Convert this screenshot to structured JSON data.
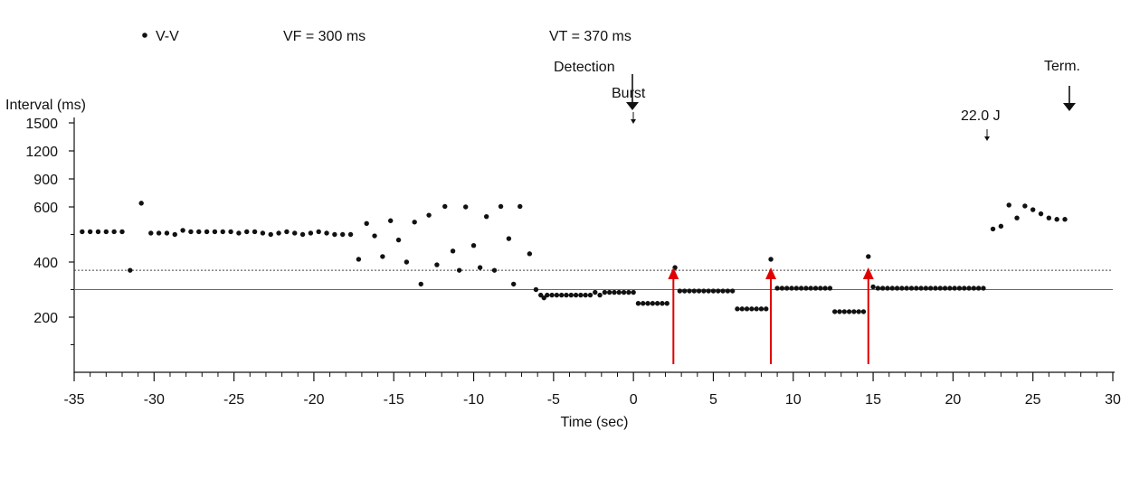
{
  "chart_data": {
    "type": "scatter",
    "title": "",
    "xlabel": "Time (sec)",
    "ylabel": "Interval (ms)",
    "xlim": [
      -35,
      30
    ],
    "ylim": [
      0,
      1500
    ],
    "x_ticks": [
      "-35",
      "-30",
      "-25",
      "-20",
      "-15",
      "-10",
      "-5",
      "0",
      "5",
      "10",
      "15",
      "20",
      "25",
      "30"
    ],
    "y_ticks": [
      "1500",
      "1200",
      "900",
      "600",
      "400",
      "200"
    ],
    "y_scale": "piecewise",
    "y_mapping": [
      [
        1500,
        136
      ],
      [
        1200,
        167
      ],
      [
        900,
        198
      ],
      [
        600,
        229
      ],
      [
        400,
        290
      ],
      [
        200,
        351
      ],
      [
        0,
        412
      ]
    ],
    "legend": {
      "label": "V-V",
      "position": "top-left"
    },
    "zones": [
      {
        "label": "VF = 300 ms",
        "value": 300
      },
      {
        "label": "VT = 370 ms",
        "value": 370
      }
    ],
    "annotations": [
      {
        "label": "Detection",
        "x": 0
      },
      {
        "label": "Burst",
        "x": 0
      },
      {
        "label": "22.0 J",
        "x": 22
      },
      {
        "label": "Term.",
        "x": 27.3
      }
    ],
    "therapy_markers_x": [
      2.5,
      8.6,
      14.7
    ],
    "series": [
      {
        "name": "V-V",
        "points": [
          [
            -34.5,
            510
          ],
          [
            -34.0,
            510
          ],
          [
            -33.5,
            510
          ],
          [
            -33.0,
            510
          ],
          [
            -32.5,
            510
          ],
          [
            -32.0,
            510
          ],
          [
            -31.5,
            370
          ],
          [
            -30.8,
            640
          ],
          [
            -30.2,
            505
          ],
          [
            -29.7,
            505
          ],
          [
            -29.2,
            505
          ],
          [
            -28.7,
            500
          ],
          [
            -28.2,
            515
          ],
          [
            -27.7,
            510
          ],
          [
            -27.2,
            510
          ],
          [
            -26.7,
            510
          ],
          [
            -26.2,
            510
          ],
          [
            -25.7,
            510
          ],
          [
            -25.2,
            510
          ],
          [
            -24.7,
            505
          ],
          [
            -24.2,
            510
          ],
          [
            -23.7,
            510
          ],
          [
            -23.2,
            505
          ],
          [
            -22.7,
            500
          ],
          [
            -22.2,
            505
          ],
          [
            -21.7,
            510
          ],
          [
            -21.2,
            505
          ],
          [
            -20.7,
            500
          ],
          [
            -20.2,
            505
          ],
          [
            -19.7,
            510
          ],
          [
            -19.2,
            505
          ],
          [
            -18.7,
            500
          ],
          [
            -18.2,
            500
          ],
          [
            -17.7,
            500
          ],
          [
            -17.2,
            410
          ],
          [
            -16.7,
            540
          ],
          [
            -16.2,
            495
          ],
          [
            -15.7,
            420
          ],
          [
            -15.2,
            550
          ],
          [
            -14.7,
            480
          ],
          [
            -14.2,
            400
          ],
          [
            -13.7,
            545
          ],
          [
            -13.3,
            320
          ],
          [
            -12.8,
            570
          ],
          [
            -12.3,
            390
          ],
          [
            -11.8,
            605
          ],
          [
            -11.3,
            440
          ],
          [
            -10.9,
            370
          ],
          [
            -10.5,
            600
          ],
          [
            -10.0,
            460
          ],
          [
            -9.6,
            380
          ],
          [
            -9.2,
            565
          ],
          [
            -8.7,
            370
          ],
          [
            -8.3,
            605
          ],
          [
            -7.8,
            485
          ],
          [
            -7.5,
            320
          ],
          [
            -7.1,
            605
          ],
          [
            -6.5,
            430
          ],
          [
            -6.1,
            300
          ],
          [
            -5.8,
            280
          ],
          [
            -5.6,
            270
          ],
          [
            -5.4,
            280
          ],
          [
            -5.1,
            280
          ],
          [
            -4.8,
            280
          ],
          [
            -4.5,
            280
          ],
          [
            -4.2,
            280
          ],
          [
            -3.9,
            280
          ],
          [
            -3.6,
            280
          ],
          [
            -3.3,
            280
          ],
          [
            -3.0,
            280
          ],
          [
            -2.7,
            280
          ],
          [
            -2.4,
            290
          ],
          [
            -2.1,
            280
          ],
          [
            -1.8,
            290
          ],
          [
            -1.5,
            290
          ],
          [
            -1.2,
            290
          ],
          [
            -0.9,
            290
          ],
          [
            -0.6,
            290
          ],
          [
            -0.3,
            290
          ],
          [
            0.0,
            290
          ],
          [
            0.3,
            250
          ],
          [
            0.6,
            250
          ],
          [
            0.9,
            250
          ],
          [
            1.2,
            250
          ],
          [
            1.5,
            250
          ],
          [
            1.8,
            250
          ],
          [
            2.1,
            250
          ],
          [
            2.6,
            380
          ],
          [
            2.9,
            295
          ],
          [
            3.2,
            295
          ],
          [
            3.5,
            295
          ],
          [
            3.8,
            295
          ],
          [
            4.1,
            295
          ],
          [
            4.4,
            295
          ],
          [
            4.7,
            295
          ],
          [
            5.0,
            295
          ],
          [
            5.3,
            295
          ],
          [
            5.6,
            295
          ],
          [
            5.9,
            295
          ],
          [
            6.2,
            295
          ],
          [
            6.5,
            230
          ],
          [
            6.8,
            230
          ],
          [
            7.1,
            230
          ],
          [
            7.4,
            230
          ],
          [
            7.7,
            230
          ],
          [
            8.0,
            230
          ],
          [
            8.3,
            230
          ],
          [
            8.6,
            410
          ],
          [
            9.0,
            305
          ],
          [
            9.3,
            305
          ],
          [
            9.6,
            305
          ],
          [
            9.9,
            305
          ],
          [
            10.2,
            305
          ],
          [
            10.5,
            305
          ],
          [
            10.8,
            305
          ],
          [
            11.1,
            305
          ],
          [
            11.4,
            305
          ],
          [
            11.7,
            305
          ],
          [
            12.0,
            305
          ],
          [
            12.3,
            305
          ],
          [
            12.6,
            220
          ],
          [
            12.9,
            220
          ],
          [
            13.2,
            220
          ],
          [
            13.5,
            220
          ],
          [
            13.8,
            220
          ],
          [
            14.1,
            220
          ],
          [
            14.4,
            220
          ],
          [
            14.7,
            420
          ],
          [
            15.0,
            310
          ],
          [
            15.3,
            305
          ],
          [
            15.6,
            305
          ],
          [
            15.9,
            305
          ],
          [
            16.2,
            305
          ],
          [
            16.5,
            305
          ],
          [
            16.8,
            305
          ],
          [
            17.1,
            305
          ],
          [
            17.4,
            305
          ],
          [
            17.7,
            305
          ],
          [
            18.0,
            305
          ],
          [
            18.3,
            305
          ],
          [
            18.6,
            305
          ],
          [
            18.9,
            305
          ],
          [
            19.2,
            305
          ],
          [
            19.5,
            305
          ],
          [
            19.8,
            305
          ],
          [
            20.1,
            305
          ],
          [
            20.4,
            305
          ],
          [
            20.7,
            305
          ],
          [
            21.0,
            305
          ],
          [
            21.3,
            305
          ],
          [
            21.6,
            305
          ],
          [
            21.9,
            305
          ],
          [
            22.5,
            520
          ],
          [
            23.0,
            530
          ],
          [
            23.5,
            620
          ],
          [
            24.0,
            560
          ],
          [
            24.5,
            610
          ],
          [
            25.0,
            590
          ],
          [
            25.5,
            575
          ],
          [
            26.0,
            560
          ],
          [
            26.5,
            555
          ],
          [
            27.0,
            555
          ]
        ]
      }
    ],
    "colors": {
      "points": "#111111",
      "threshold_lines": "#444444",
      "therapy_arrows": "#e00000",
      "axis": "#111111"
    }
  }
}
